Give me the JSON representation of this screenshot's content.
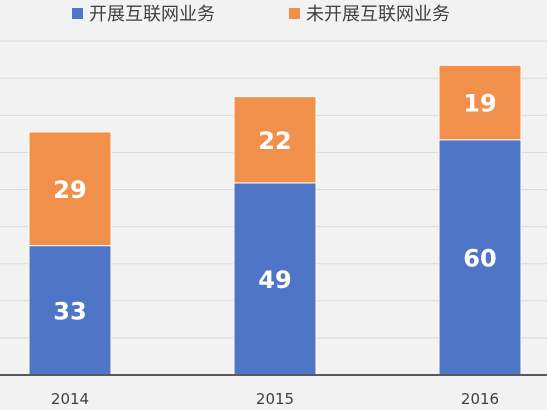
{
  "chart_data": {
    "type": "bar",
    "stacked": true,
    "title": "",
    "xlabel": "",
    "ylabel": "",
    "categories": [
      "2014",
      "2015",
      "2016"
    ],
    "series": [
      {
        "name": "开展互联网业务",
        "values": [
          33,
          49,
          60
        ],
        "color": "#4f76c6"
      },
      {
        "name": "未开展互联网业务",
        "values": [
          29,
          22,
          19
        ],
        "color": "#f0904a"
      }
    ],
    "ylim": [
      0,
      88
    ],
    "grid": true,
    "legend_position": "top",
    "data_labels": true
  }
}
